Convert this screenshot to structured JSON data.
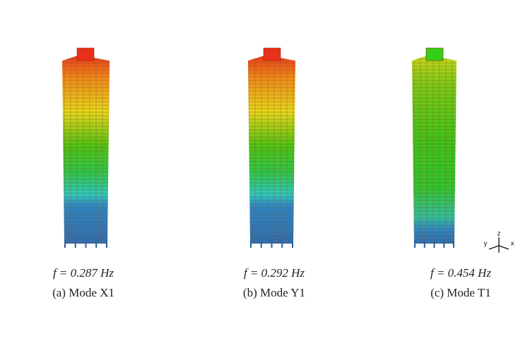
{
  "panels": [
    {
      "frequency": "f = 0.287 Hz",
      "caption": "(a) Mode X1"
    },
    {
      "frequency": "f = 0.292 Hz",
      "caption": "(b) Mode Y1"
    },
    {
      "frequency": "f = 0.454 Hz",
      "caption": "(c) Mode T1"
    }
  ],
  "axes": {
    "y": "y",
    "z": "z",
    "x": "x"
  }
}
